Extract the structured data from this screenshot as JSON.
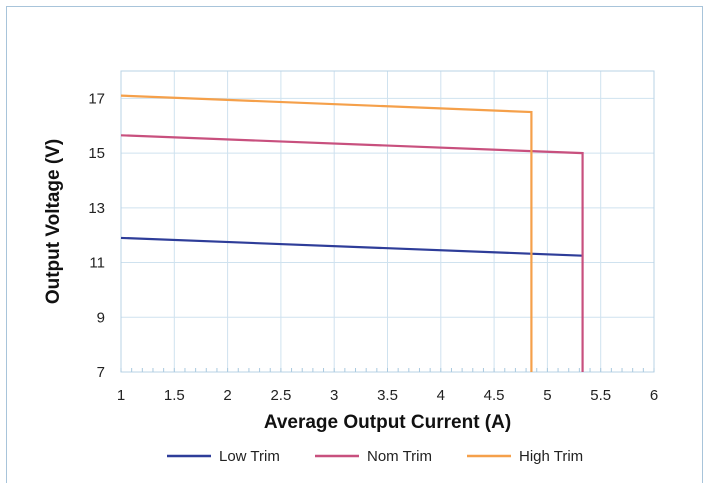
{
  "chart_data": {
    "type": "line",
    "title": "",
    "xlabel": "Average Output Current (A)",
    "ylabel": "Output Voltage (V)",
    "xlim": [
      1,
      6
    ],
    "ylim": [
      7,
      18
    ],
    "x_ticks": [
      "1",
      "1.5",
      "2",
      "2.5",
      "3",
      "3.5",
      "4",
      "4.5",
      "5",
      "5.5",
      "6"
    ],
    "y_ticks": [
      "7",
      "9",
      "11",
      "13",
      "15",
      "17"
    ],
    "grid": true,
    "legend_position": "bottom",
    "series": [
      {
        "name": "Low Trim",
        "color": "#2e3d99",
        "points": [
          [
            1,
            11.9
          ],
          [
            5.33,
            11.25
          ]
        ]
      },
      {
        "name": "Nom Trim",
        "color": "#c8507e",
        "points": [
          [
            1,
            15.65
          ],
          [
            5.33,
            15.0
          ],
          [
            5.33,
            7
          ]
        ]
      },
      {
        "name": "High Trim",
        "color": "#f5a04a",
        "points": [
          [
            1,
            17.1
          ],
          [
            4.85,
            16.5
          ],
          [
            4.85,
            7
          ]
        ]
      }
    ]
  }
}
